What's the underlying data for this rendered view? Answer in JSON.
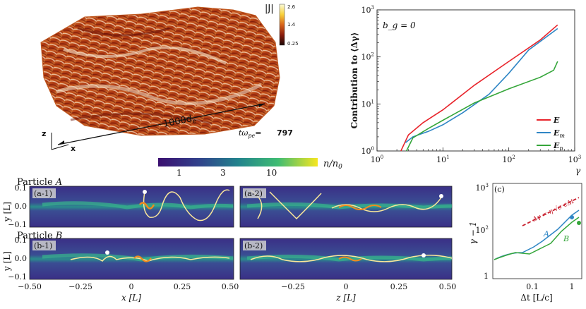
{
  "figure": {
    "render3d": {
      "colorbar_label": "|J|",
      "colorbar_ticks": [
        "2.6",
        "1.4",
        "0.25"
      ],
      "length_label": "1000d",
      "length_sub": "e",
      "axis_z": "z",
      "axis_x": "x",
      "time_label": "tω",
      "time_sub": "pe",
      "time_eq": "=",
      "time_value": "797"
    },
    "density_colorbar": {
      "ticks": [
        "1",
        "3",
        "10"
      ],
      "label": "n/n",
      "label_sub": "0"
    },
    "particle_rows": [
      {
        "title": "Particle",
        "letter": "A"
      },
      {
        "title": "Particle",
        "letter": "B"
      }
    ],
    "panels": [
      {
        "tag": "(a-1)"
      },
      {
        "tag": "(a-2)"
      },
      {
        "tag": "(b-1)"
      },
      {
        "tag": "(b-2)"
      }
    ],
    "yaxis": {
      "label": "y [L]",
      "ticks": [
        "0.1",
        "0.0",
        "−0.1"
      ]
    },
    "xaxis_left": {
      "label": "x [L]",
      "ticks": [
        "−0.50",
        "−0.25",
        "0",
        "0.25",
        "0.50"
      ]
    },
    "xaxis_right": {
      "label": "z [L]",
      "ticks": [
        "−0.25",
        "0",
        "0.25",
        "0.50"
      ]
    },
    "panel_c": {
      "tag": "(c)",
      "xlabel": "Δt [L/c]",
      "ylabel": "γ − 1",
      "x_ticks": [
        "0.1",
        "1"
      ],
      "y_ticks": [
        "10",
        "10",
        "1"
      ],
      "y_exp": [
        "3",
        "2",
        ""
      ],
      "curve_A": "A",
      "curve_B": "B",
      "fit_label": "Δγ = η",
      "fit_rest": "√σ",
      "fit_tail": "cΔt"
    }
  },
  "chart_data": {
    "type": "line",
    "title": "",
    "annotation": "b_g = 0",
    "xlabel": "γ",
    "ylabel": "Contribution to ⟨Δγ⟩",
    "xscale": "log",
    "yscale": "log",
    "xlim": [
      1,
      1000
    ],
    "ylim": [
      1,
      1000
    ],
    "x_ticks": [
      "10",
      "10",
      "10",
      "10"
    ],
    "x_tick_exp": [
      "0",
      "1",
      "2",
      "3"
    ],
    "y_ticks": [
      "10",
      "10",
      "10",
      "10"
    ],
    "y_tick_exp": [
      "0",
      "1",
      "2",
      "3"
    ],
    "legend_position": "lower-right",
    "series": [
      {
        "name": "E",
        "sub": "",
        "color": "#e8242b",
        "x": [
          2.3,
          3,
          5,
          10,
          30,
          100,
          300,
          550
        ],
        "y": [
          1,
          2.2,
          4,
          7.5,
          25,
          80,
          230,
          480
        ]
      },
      {
        "name": "E",
        "sub": "m",
        "color": "#2f86c5",
        "x": [
          2.7,
          3.5,
          6,
          10,
          20,
          50,
          100,
          200,
          550
        ],
        "y": [
          1.5,
          2,
          2.6,
          3.6,
          6.5,
          16,
          45,
          140,
          400
        ]
      },
      {
        "name": "E",
        "sub": "n",
        "color": "#35a63a",
        "x": [
          2.8,
          3.5,
          6,
          10,
          30,
          100,
          300,
          480,
          550
        ],
        "y": [
          1.0,
          1.9,
          3,
          4.5,
          10.5,
          21,
          37,
          52,
          80
        ]
      }
    ]
  }
}
